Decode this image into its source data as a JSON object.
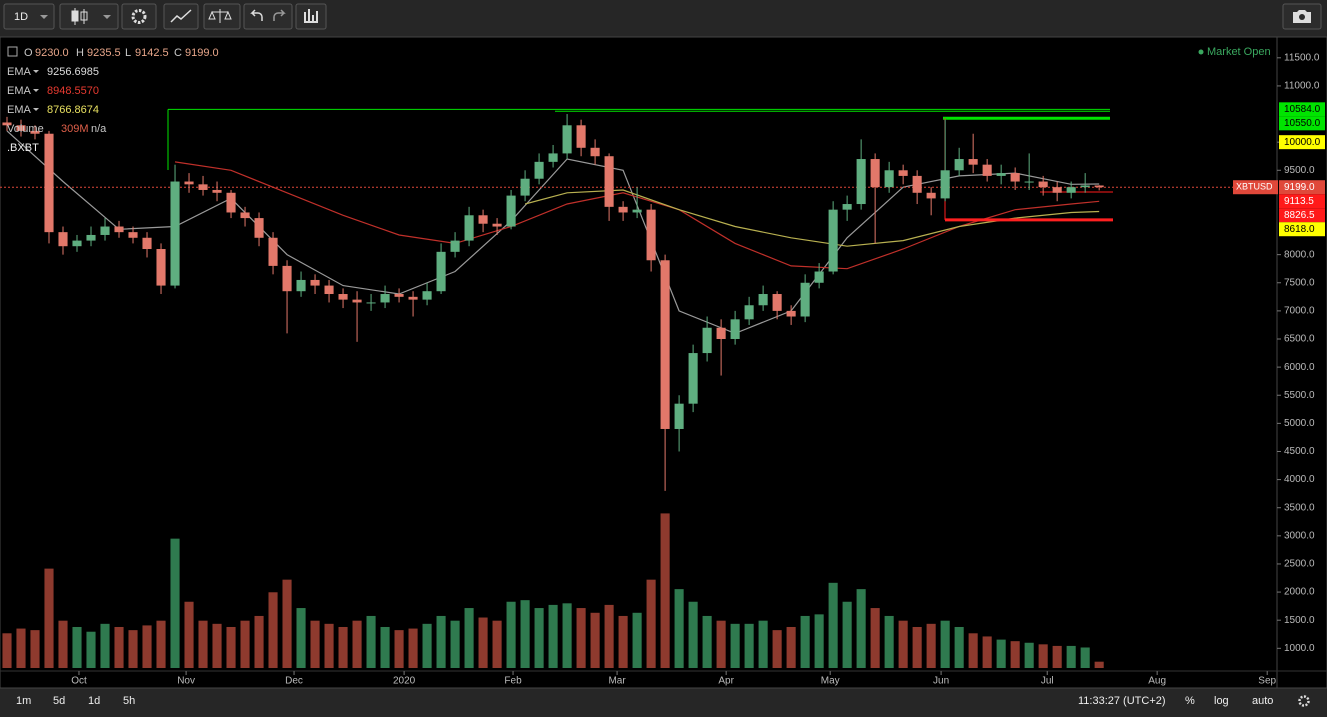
{
  "toolbar": {
    "interval": "1D"
  },
  "bottom_bar": {
    "ranges": [
      "1m",
      "5d",
      "1d",
      "5h"
    ],
    "clock": "11:33:27 (UTC+2)",
    "percent": "%",
    "log": "log",
    "auto": "auto"
  },
  "chart_data": {
    "type": "candlestick",
    "symbol_label": ".BXBT",
    "status": "Market Open",
    "ohlc_legend": [
      {
        "key": "O",
        "value": 9230,
        "label": "9230.0"
      },
      {
        "key": "H",
        "value": 9235.5,
        "label": "9235.5"
      },
      {
        "key": "L",
        "value": 9142.5,
        "label": "9142.5"
      },
      {
        "key": "C",
        "value": 9199,
        "label": "9199.0"
      }
    ],
    "categories": [
      null,
      null,
      null,
      null,
      null,
      null,
      null,
      null,
      null,
      null,
      null,
      null,
      null,
      null,
      null,
      null,
      null,
      null,
      null,
      null,
      null,
      null,
      null,
      null,
      null,
      null,
      null,
      null,
      null,
      null,
      null,
      null,
      null,
      null,
      null,
      null,
      null,
      null,
      null,
      null,
      null,
      null,
      null,
      null,
      null,
      null,
      null,
      null,
      null,
      null,
      null,
      null,
      null,
      null,
      null,
      null,
      null,
      null,
      null,
      null,
      null,
      null,
      null,
      null,
      null,
      null,
      null,
      null,
      null,
      null,
      null,
      null,
      null,
      null,
      null,
      null,
      null,
      null,
      null
    ],
    "open": [
      10350,
      10300,
      10200,
      10150,
      8400,
      8150,
      8250,
      8350,
      8500,
      8400,
      8300,
      8100,
      7450,
      9300,
      9250,
      9150,
      9100,
      8750,
      8650,
      8300,
      7800,
      7350,
      7550,
      7450,
      7300,
      7200,
      7150,
      7150,
      7300,
      7250,
      7200,
      7350,
      8050,
      8250,
      8700,
      8550,
      8500,
      9050,
      9350,
      9650,
      9800,
      10300,
      9900,
      9750,
      8850,
      8750,
      8800,
      7900,
      4900,
      5350,
      6250,
      6700,
      6500,
      6850,
      7100,
      7300,
      7000,
      6900,
      7500,
      7700,
      8800,
      8900,
      9700,
      9200,
      9500,
      9400,
      9100,
      9000,
      9500,
      9700,
      9600,
      9400,
      9450,
      9300,
      9300,
      9200,
      9100,
      9200,
      9230
    ],
    "high": [
      10450,
      10400,
      10300,
      10200,
      8500,
      8350,
      8500,
      8650,
      8600,
      8500,
      8400,
      8200,
      9600,
      9450,
      9400,
      9300,
      9150,
      8850,
      8750,
      8400,
      7900,
      7700,
      7650,
      7550,
      7400,
      7350,
      7300,
      7450,
      7400,
      7350,
      7500,
      8200,
      8400,
      8850,
      8800,
      8650,
      9150,
      9500,
      9800,
      9950,
      10500,
      10400,
      10050,
      9800,
      8950,
      9200,
      8900,
      8000,
      5500,
      6400,
      6900,
      6850,
      7000,
      7250,
      7450,
      7350,
      7100,
      7650,
      7850,
      8950,
      9050,
      10050,
      9800,
      9650,
      9600,
      9500,
      9200,
      10400,
      9900,
      10150,
      9700,
      9600,
      9550,
      9800,
      9400,
      9300,
      9300,
      9450,
      9235.5
    ],
    "low": [
      10200,
      10100,
      10050,
      8200,
      8000,
      8050,
      8150,
      8250,
      8300,
      8200,
      7950,
      7300,
      7400,
      9100,
      9050,
      8950,
      8650,
      8500,
      8150,
      7650,
      6600,
      7250,
      7300,
      7150,
      7050,
      6450,
      7000,
      7050,
      7150,
      6900,
      7100,
      7300,
      7950,
      8150,
      8400,
      8350,
      8450,
      8950,
      9250,
      9550,
      9700,
      9750,
      9600,
      8600,
      8600,
      8650,
      7700,
      3800,
      4500,
      5200,
      6100,
      5850,
      6400,
      6750,
      7000,
      6850,
      6750,
      6800,
      7400,
      7650,
      8600,
      8800,
      8200,
      9100,
      9250,
      8900,
      8700,
      8950,
      9400,
      9450,
      9300,
      9250,
      9150,
      9150,
      9050,
      8950,
      9000,
      9100,
      9142.5
    ],
    "close": [
      10300,
      10200,
      10150,
      8400,
      8150,
      8250,
      8350,
      8500,
      8400,
      8300,
      8100,
      7450,
      9300,
      9250,
      9150,
      9100,
      8750,
      8650,
      8300,
      7800,
      7350,
      7550,
      7450,
      7300,
      7200,
      7150,
      7150,
      7300,
      7250,
      7200,
      7350,
      8050,
      8250,
      8700,
      8550,
      8500,
      9050,
      9350,
      9650,
      9800,
      10300,
      9900,
      9750,
      8850,
      8750,
      8800,
      7900,
      4900,
      5350,
      6250,
      6700,
      6500,
      6850,
      7100,
      7300,
      7000,
      6900,
      7500,
      7700,
      8800,
      8900,
      9700,
      9200,
      9500,
      9400,
      9100,
      9000,
      9500,
      9700,
      9600,
      9400,
      9450,
      9300,
      9300,
      9200,
      9100,
      9200,
      9230,
      9199
    ],
    "up_color": "#5fae80",
    "down_color": "#e2786a",
    "volume": {
      "name": "Volume",
      "label": "309M",
      "extra": "n/a",
      "values": [
        220,
        250,
        240,
        630,
        300,
        260,
        230,
        280,
        260,
        240,
        270,
        300,
        820,
        420,
        300,
        280,
        260,
        300,
        330,
        480,
        560,
        380,
        300,
        280,
        260,
        300,
        330,
        260,
        240,
        250,
        280,
        330,
        300,
        380,
        320,
        300,
        420,
        430,
        380,
        400,
        410,
        380,
        350,
        400,
        330,
        350,
        560,
        980,
        500,
        420,
        330,
        300,
        280,
        280,
        300,
        240,
        260,
        330,
        340,
        540,
        420,
        500,
        380,
        330,
        300,
        260,
        280,
        300,
        260,
        220,
        200,
        180,
        170,
        160,
        150,
        140,
        140,
        130,
        40
      ],
      "ylim": [
        0,
        4000
      ],
      "up_color": "#2f7a4f",
      "down_color": "#8e3a2e"
    },
    "indicators": [
      {
        "name": "EMA",
        "value_label": "9256.6985",
        "color": "#9a9a9a",
        "label_color": "#dddddd",
        "x": [
          0,
          4,
          8,
          12,
          16,
          20,
          24,
          28,
          32,
          36,
          40,
          44,
          48,
          52,
          56,
          60,
          64,
          68,
          72,
          76,
          78
        ],
        "values": [
          10200,
          9300,
          8450,
          8500,
          9000,
          8000,
          7450,
          7300,
          7700,
          8600,
          9700,
          9500,
          7000,
          6600,
          7000,
          8300,
          9200,
          9400,
          9450,
          9250,
          9257
        ]
      },
      {
        "name": "EMA",
        "value_label": "8948.5570",
        "color": "#c0302a",
        "label_color": "#e83a30",
        "x": [
          12,
          16,
          20,
          24,
          28,
          32,
          36,
          40,
          44,
          48,
          52,
          56,
          60,
          64,
          68,
          72,
          76,
          78
        ],
        "values": [
          9650,
          9500,
          9100,
          8700,
          8350,
          8200,
          8500,
          8900,
          9100,
          8800,
          8200,
          7800,
          7750,
          8100,
          8500,
          8800,
          8900,
          8949
        ]
      },
      {
        "name": "EMA",
        "value_label": "8766.8674",
        "color": "#b8b050",
        "label_color": "#e8e060",
        "x": [
          37,
          40,
          44,
          48,
          52,
          56,
          60,
          64,
          68,
          72,
          76,
          78
        ],
        "values": [
          8900,
          9100,
          9150,
          8800,
          8500,
          8300,
          8150,
          8250,
          8500,
          8650,
          8750,
          8767
        ]
      }
    ],
    "xlim": [
      -0.5,
      90.7
    ],
    "xticks": [
      {
        "value": 5.14,
        "label": "Oct"
      },
      {
        "value": 12.79,
        "label": "Nov"
      },
      {
        "value": 20.5,
        "label": "Dec"
      },
      {
        "value": 28.36,
        "label": "2020"
      },
      {
        "value": 36.14,
        "label": "Feb"
      },
      {
        "value": 43.57,
        "label": "Mar"
      },
      {
        "value": 51.36,
        "label": "Apr"
      },
      {
        "value": 58.79,
        "label": "May"
      },
      {
        "value": 66.71,
        "label": "Jun"
      },
      {
        "value": 74.29,
        "label": "Jul"
      },
      {
        "value": 82.14,
        "label": "Aug"
      },
      {
        "value": 90,
        "label": "Sep"
      }
    ],
    "ylim": [
      650,
      11870
    ],
    "yticks": [
      {
        "value": 11500,
        "label": "11500.0"
      },
      {
        "value": 11000,
        "label": "11000.0"
      },
      {
        "value": 10000,
        "label": "10000.0",
        "color": "#ffff00"
      },
      {
        "value": 9500,
        "label": "9500.0"
      },
      {
        "value": 8000,
        "label": "8000.0"
      },
      {
        "value": 7500,
        "label": "7500.0"
      },
      {
        "value": 7000,
        "label": "7000.0"
      },
      {
        "value": 6500,
        "label": "6500.0"
      },
      {
        "value": 6000,
        "label": "6000.0"
      },
      {
        "value": 5500,
        "label": "5500.0"
      },
      {
        "value": 5000,
        "label": "5000.0"
      },
      {
        "value": 4500,
        "label": "4500.0"
      },
      {
        "value": 4000,
        "label": "4000.0"
      },
      {
        "value": 3500,
        "label": "3500.0"
      },
      {
        "value": 3000,
        "label": "3000.0"
      },
      {
        "value": 2500,
        "label": "2500.0"
      },
      {
        "value": 2000,
        "label": "2000.0"
      },
      {
        "value": 1500,
        "label": "1500.0"
      },
      {
        "value": 1000,
        "label": "1000.0"
      }
    ],
    "levels": [
      {
        "value": 10584,
        "label": "10584.0",
        "color": "#00e400"
      },
      {
        "value": 10550,
        "label": "10550.0",
        "color": "#00e400"
      },
      {
        "name": "XBTUSD",
        "value": 9199,
        "label": "9199.0",
        "color": "#e0483a"
      },
      {
        "value": 9113.5,
        "label": "9113.5",
        "color": "#ff1a1a"
      },
      {
        "value": 8826.5,
        "label": "8826.5",
        "color": "#ff1a1a"
      },
      {
        "value": 8618,
        "label": "8618.0",
        "color": "#ffff00"
      }
    ]
  }
}
